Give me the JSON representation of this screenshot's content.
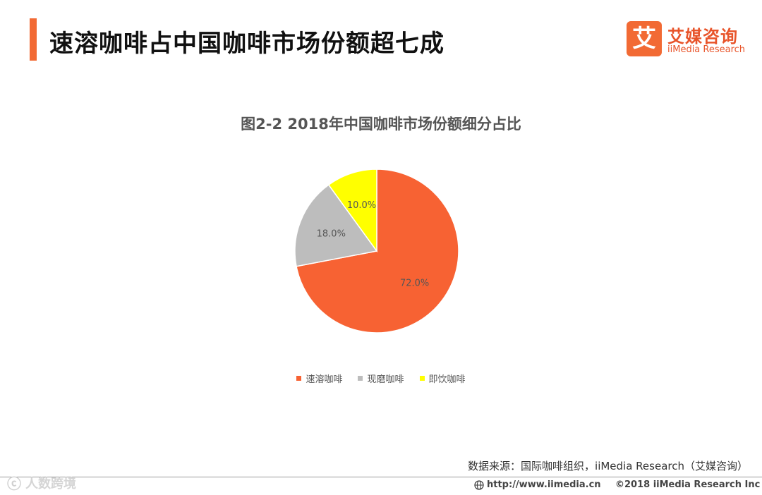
{
  "header": {
    "title": "速溶咖啡占中国咖啡市场份额超七成"
  },
  "logo": {
    "mark": "艾",
    "name_cn": "艾媒咨询",
    "name_en": "iiMedia Research"
  },
  "chart_data": {
    "type": "pie",
    "title": "图2-2 2018年中国咖啡市场份额细分占比",
    "categories": [
      "速溶咖啡",
      "现磨咖啡",
      "即饮咖啡"
    ],
    "values": [
      72.0,
      18.0,
      10.0
    ],
    "data_labels": [
      "72.0%",
      "18.0%",
      "10.0%"
    ],
    "colors": [
      "#f76233",
      "#bdbdbd",
      "#ffff00"
    ],
    "legend_position": "bottom"
  },
  "source": "数据来源：国际咖啡组织，iiMedia Research（艾媒咨询）",
  "footer": {
    "url": "http://www.iimedia.cn",
    "copyright": "©2018  iiMedia Research  Inc"
  },
  "watermark": {
    "text": "人数跨境"
  }
}
